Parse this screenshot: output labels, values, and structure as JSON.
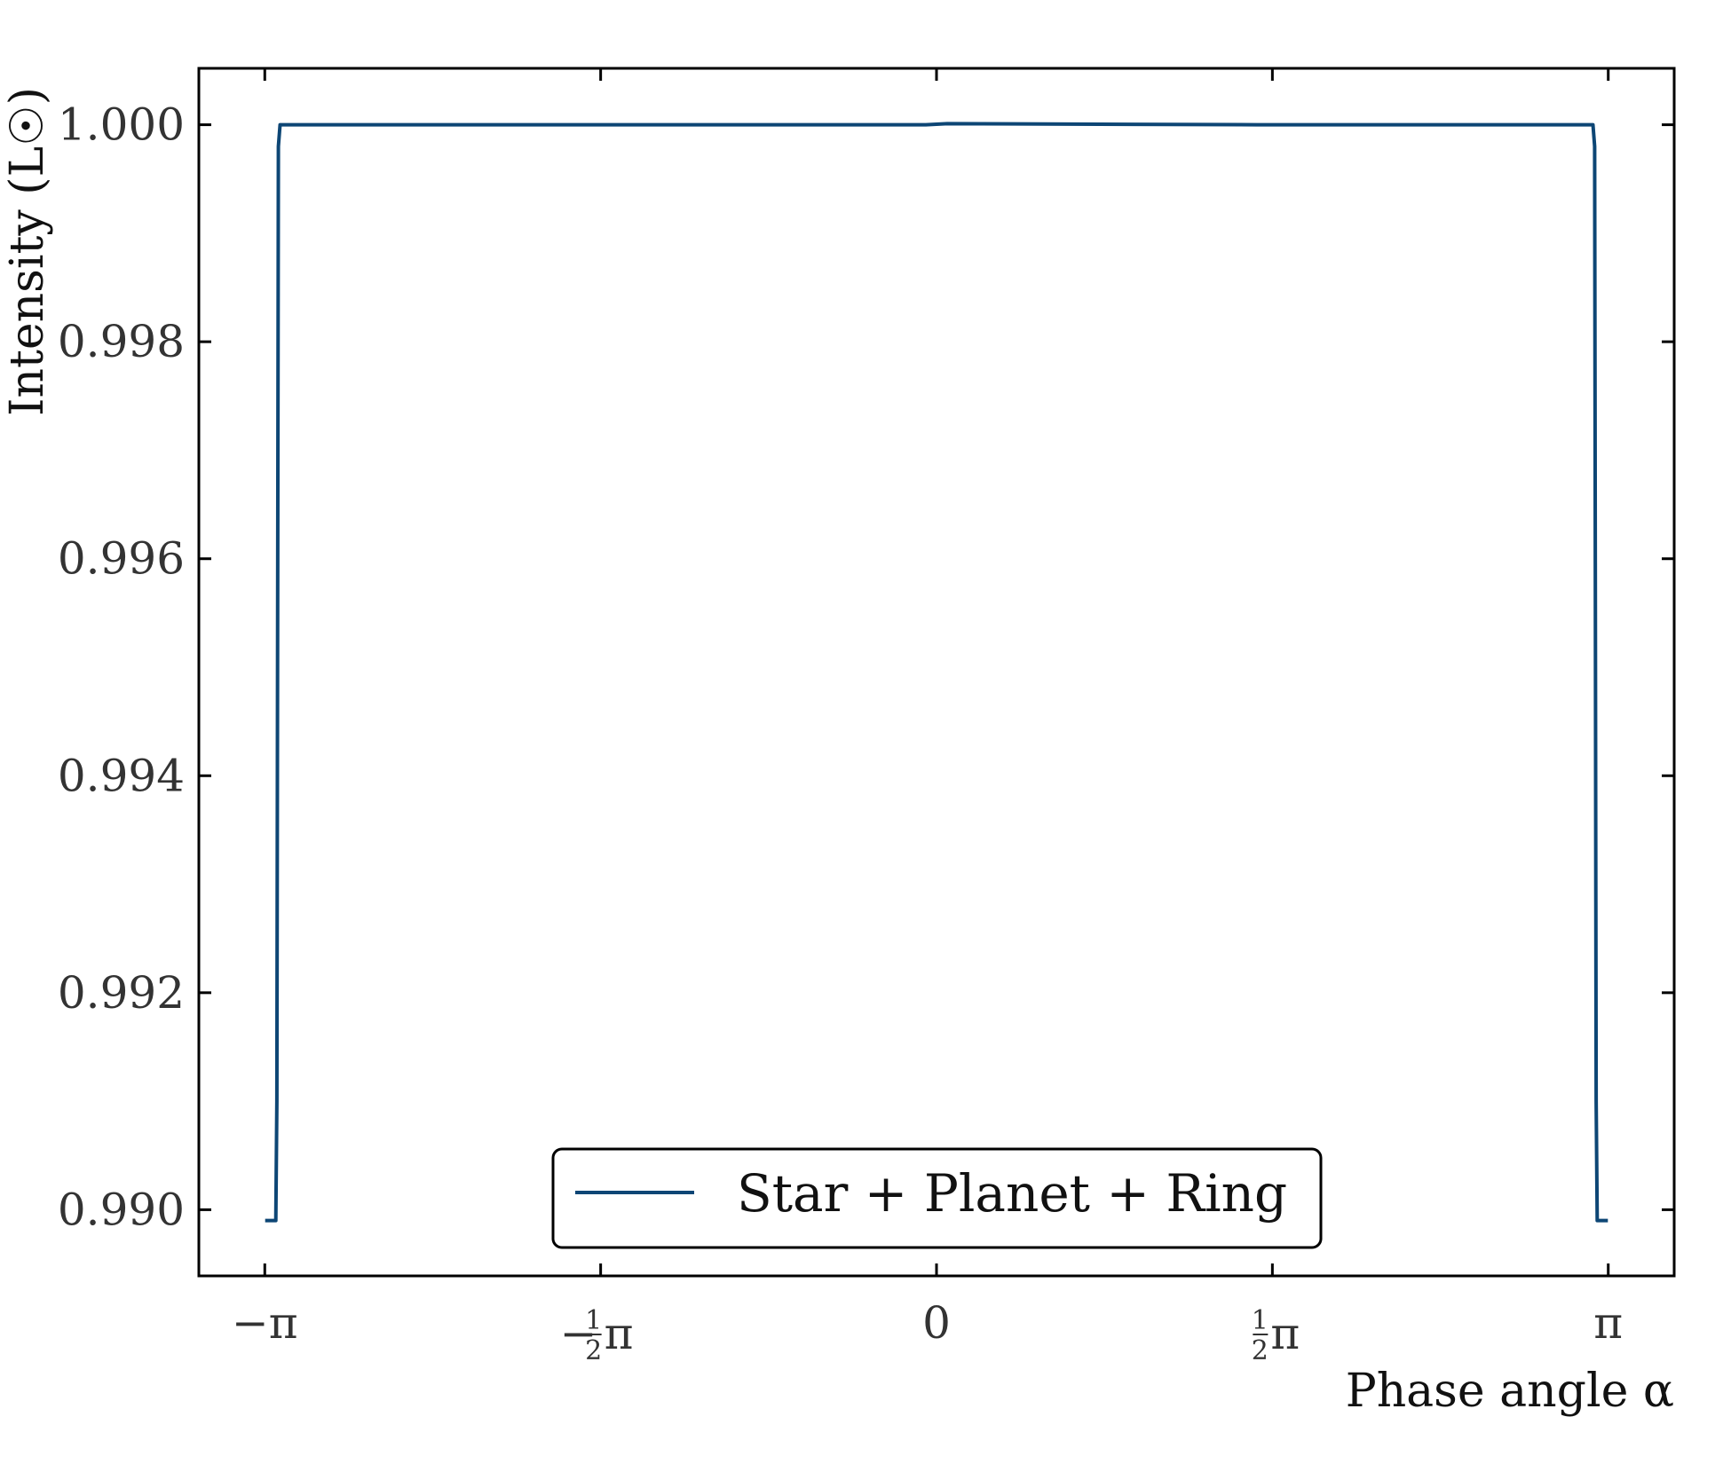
{
  "chart_data": {
    "type": "line",
    "xlabel": "Phase angle α",
    "ylabel": "Intensity (L☉)",
    "xlim": [
      -3.45,
      3.45
    ],
    "ylim": [
      0.98939,
      1.00052
    ],
    "x_ticks": [
      {
        "value": -3.14159,
        "label": "−π"
      },
      {
        "value": -1.5708,
        "label": "−½π"
      },
      {
        "value": 0,
        "label": "0"
      },
      {
        "value": 1.5708,
        "label": "½π"
      },
      {
        "value": 3.14159,
        "label": "π"
      }
    ],
    "y_ticks": [
      {
        "value": 0.99,
        "label": "0.990"
      },
      {
        "value": 0.992,
        "label": "0.992"
      },
      {
        "value": 0.994,
        "label": "0.994"
      },
      {
        "value": 0.996,
        "label": "0.996"
      },
      {
        "value": 0.998,
        "label": "0.998"
      },
      {
        "value": 1.0,
        "label": "1.000"
      }
    ],
    "series": [
      {
        "name": "Star + Planet + Ring",
        "color": "#0d4675",
        "points": [
          [
            -3.14,
            0.9899
          ],
          [
            -3.09,
            0.9899
          ],
          [
            -3.085,
            0.991
          ],
          [
            -3.078,
            0.9998
          ],
          [
            -3.07,
            1.0
          ],
          [
            -1.5,
            1.0
          ],
          [
            -0.05,
            1.0
          ],
          [
            0.05,
            1.00001
          ],
          [
            1.5,
            1.0
          ],
          [
            3.07,
            1.0
          ],
          [
            3.078,
            0.9998
          ],
          [
            3.085,
            0.991
          ],
          [
            3.09,
            0.9899
          ],
          [
            3.14,
            0.9899
          ]
        ]
      }
    ],
    "legend": {
      "position": "lower center",
      "entries": [
        "Star + Planet + Ring"
      ]
    },
    "grid": false
  }
}
